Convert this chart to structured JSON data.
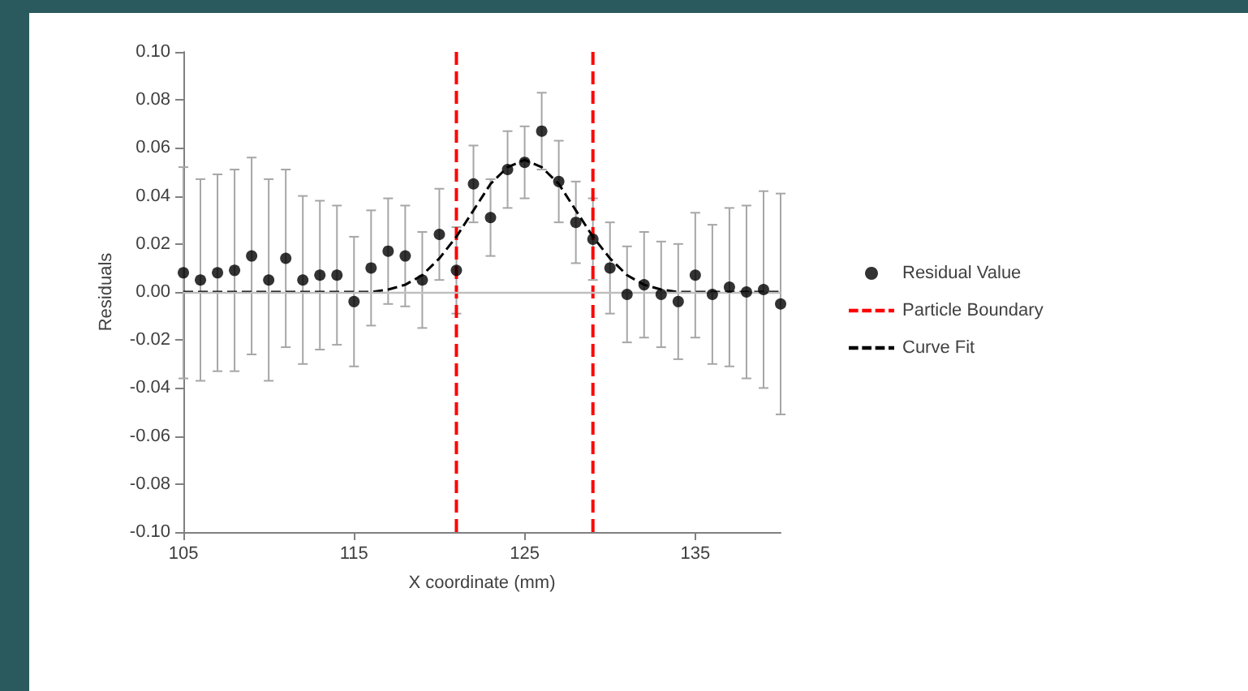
{
  "chart_data": {
    "type": "scatter",
    "xlabel": "X coordinate (mm)",
    "ylabel": "Residuals",
    "xlim": [
      105,
      140
    ],
    "xticks": [
      105,
      115,
      125,
      135
    ],
    "ylim": [
      -0.1,
      0.1
    ],
    "yticks": [
      {
        "value": -0.1,
        "label": "-0.10"
      },
      {
        "value": -0.08,
        "label": "-0.08"
      },
      {
        "value": -0.06,
        "label": "-0.06"
      },
      {
        "value": -0.04,
        "label": "-0.04"
      },
      {
        "value": -0.02,
        "label": "-0.02"
      },
      {
        "value": 0,
        "label": "0.00"
      },
      {
        "value": 0.02,
        "label": "0.02"
      },
      {
        "value": 0.04,
        "label": "0.04"
      },
      {
        "value": 0.06,
        "label": "0.06"
      },
      {
        "value": 0.08,
        "label": "0.08"
      },
      {
        "value": 0.1,
        "label": "0.10"
      }
    ],
    "grid": false,
    "legend": "right",
    "marker": "circle",
    "series": [
      {
        "name": "Residual Value",
        "color": "#000000",
        "x": [
          105,
          106,
          107,
          108,
          109,
          110,
          111,
          112,
          113,
          114,
          115,
          116,
          117,
          118,
          119,
          120,
          121,
          122,
          123,
          124,
          125,
          126,
          127,
          128,
          129,
          130,
          131,
          132,
          133,
          134,
          135,
          136,
          137,
          138,
          139,
          140
        ],
        "values": [
          0.008,
          0.005,
          0.008,
          0.009,
          0.015,
          0.005,
          0.014,
          0.005,
          0.007,
          0.007,
          -0.004,
          0.01,
          0.017,
          0.015,
          0.005,
          0.024,
          0.009,
          0.045,
          0.031,
          0.051,
          0.054,
          0.067,
          0.046,
          0.029,
          0.022,
          0.01,
          -0.001,
          0.003,
          -0.001,
          -0.004,
          0.007,
          -0.001,
          0.002,
          0,
          0.001,
          -0.005
        ],
        "errors": [
          0.044,
          0.042,
          0.041,
          0.042,
          0.041,
          0.042,
          0.037,
          0.035,
          0.031,
          0.029,
          0.027,
          0.024,
          0.022,
          0.021,
          0.02,
          0.019,
          0.018,
          0.016,
          0.016,
          0.016,
          0.015,
          0.016,
          0.017,
          0.017,
          0.017,
          0.019,
          0.02,
          0.022,
          0.022,
          0.024,
          0.026,
          0.029,
          0.033,
          0.036,
          0.041,
          0.046
        ]
      },
      {
        "name": "Particle Boundary",
        "type": "line",
        "color": "#ff0000",
        "line_style": "dashed",
        "marker": "none",
        "x": [
          121,
          121,
          125,
          129,
          129
        ],
        "values": [
          -0.1,
          0.1,
          null,
          -0.1,
          0.1
        ]
      },
      {
        "name": "Curve Fit",
        "type": "line",
        "color": "#000000",
        "line_style": "dashed",
        "marker": "none",
        "x": [
          105,
          110,
          115,
          116,
          117,
          118,
          119,
          120,
          121,
          122,
          123,
          124,
          125,
          126,
          127,
          128,
          129,
          130,
          131,
          132,
          133,
          134,
          135,
          140
        ],
        "values": [
          0,
          0,
          0,
          0,
          0.001,
          0.003,
          0.007,
          0.014,
          0.023,
          0.034,
          0.045,
          0.052,
          0.055,
          0.052,
          0.045,
          0.034,
          0.023,
          0.014,
          0.007,
          0.003,
          0.001,
          0,
          0,
          0
        ]
      }
    ],
    "ref_lines": [
      {
        "axis": "y",
        "value": 0,
        "color": "#bfbfbf",
        "line_style": "solid"
      }
    ]
  }
}
